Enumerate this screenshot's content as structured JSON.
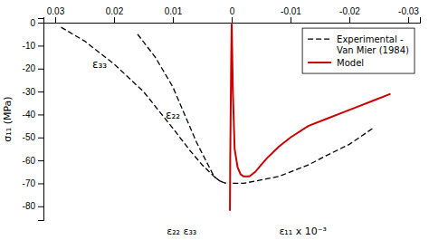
{
  "chart_data": {
    "type": "line",
    "y_label": "σ₁₁ (MPa)",
    "annotations": [
      {
        "text": "ε₁₁ x 10⁻³"
      },
      {
        "text": "ε₂₂ ε₃₃"
      },
      {
        "text": "ε₃₃"
      },
      {
        "text": "ε₂₂"
      }
    ],
    "xlim": [
      0.032,
      -0.032
    ],
    "ylim": [
      -86,
      2
    ],
    "xticks": [
      0.03,
      0.02,
      0.01,
      0,
      -0.01,
      -0.02,
      -0.03
    ],
    "yticks": [
      0,
      -10,
      -20,
      -30,
      -40,
      -50,
      -60,
      -70,
      -80
    ],
    "legend": "upper right",
    "series": [
      {
        "name": "Experimental -\nVan Mier (1984)",
        "color": "#000000",
        "line_style": "dashed",
        "x": [
          0.029,
          0.025,
          0.02,
          0.015,
          0.01,
          0.007,
          0.005,
          0.003,
          0.002,
          0.001
        ],
        "values": [
          -2,
          -8,
          -18,
          -30,
          -46,
          -56,
          -62,
          -67,
          -69,
          -70
        ]
      },
      {
        "color": "#000000",
        "line_style": "dashed",
        "x": [
          0.016,
          0.013,
          0.01,
          0.008,
          0.006,
          0.004,
          0.003,
          0.002,
          0.001
        ],
        "values": [
          -5,
          -15,
          -28,
          -40,
          -52,
          -62,
          -67,
          -69,
          -70
        ]
      },
      {
        "color": "#000000",
        "line_style": "dashed",
        "x": [
          -0.0002,
          -0.002,
          -0.004,
          -0.006,
          -0.008,
          -0.01,
          -0.013,
          -0.016,
          -0.02,
          -0.024
        ],
        "values": [
          -70,
          -70,
          -69,
          -68,
          -67,
          -65,
          -62,
          -58,
          -53,
          -46
        ]
      },
      {
        "name": "Model",
        "color": "#cc0000",
        "line_style": "solid",
        "x": [
          0.0,
          0.0001,
          0.00025,
          0.0003,
          0.00025,
          0.0001,
          0.0,
          -0.0002,
          -0.0005,
          -0.001,
          -0.0015,
          -0.002,
          -0.003,
          -0.004,
          -0.005,
          -0.006,
          -0.008,
          -0.01,
          -0.013,
          -0.016,
          -0.02,
          -0.024,
          -0.027
        ],
        "values": [
          0,
          -20,
          -60,
          -82,
          -60,
          -20,
          0,
          -30,
          -55,
          -63,
          -66,
          -67,
          -67,
          -65,
          -62,
          -59,
          -54,
          -50,
          -45,
          -42,
          -38,
          -34,
          -31
        ]
      }
    ]
  }
}
